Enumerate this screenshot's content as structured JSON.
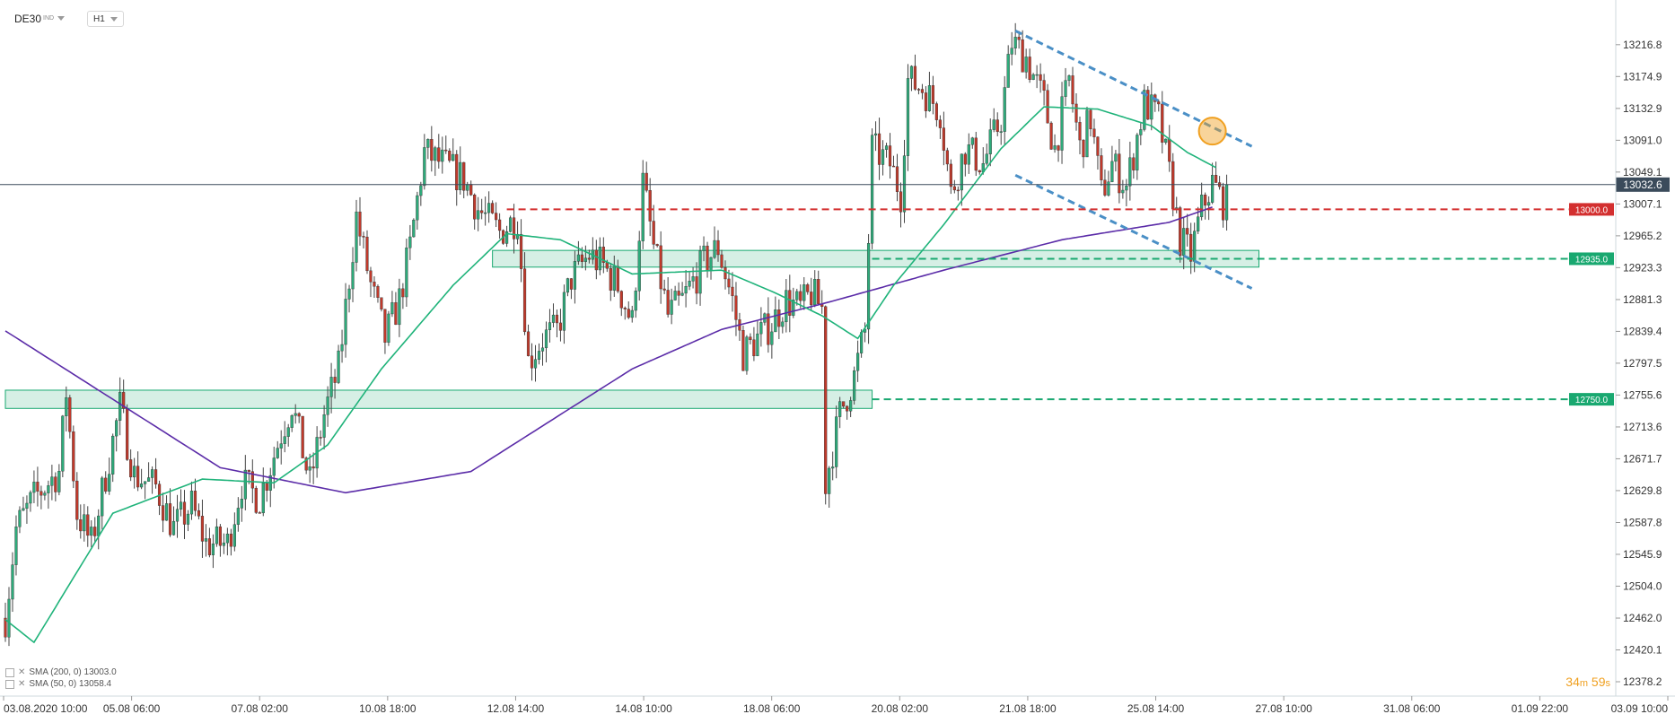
{
  "header": {
    "symbol": "DE30",
    "symbol_badge": "IND",
    "timeframe": "H1"
  },
  "legend": [
    {
      "label": "SMA (200, 0) 13003.0"
    },
    {
      "label": "SMA (50, 0) 13058.4"
    }
  ],
  "countdown": {
    "minutes": "34",
    "m": "m",
    "seconds": "59",
    "s": "s"
  },
  "colors": {
    "bull": "#2eaa7a",
    "bear": "#c0392b",
    "sma50": "#1fb37a",
    "sma200": "#5b2ca8",
    "resistance": "#d32f2f",
    "support": "#19a870",
    "channel": "#4a8fc6",
    "highlight": "#f0a020",
    "price_line": "#3b4b5b"
  },
  "chart_data": {
    "type": "candlestick",
    "ylim": [
      12378.2,
      13252.0
    ],
    "yticks": [
      "13216.8",
      "13174.9",
      "13132.9",
      "13091.0",
      "13049.1",
      "13007.1",
      "12965.2",
      "12923.3",
      "12881.3",
      "12839.4",
      "12797.5",
      "12755.6",
      "12713.6",
      "12671.7",
      "12629.8",
      "12587.8",
      "12545.9",
      "12504.0",
      "12462.0",
      "12420.1",
      "12378.2"
    ],
    "xticks": [
      "03.08.2020 10:00",
      "05.08 06:00",
      "07.08 02:00",
      "10.08 18:00",
      "12.08 14:00",
      "14.08 10:00",
      "18.08 06:00",
      "20.08 02:00",
      "21.08 18:00",
      "25.08 14:00",
      "27.08 10:00",
      "31.08 06:00",
      "01.09 22:00",
      "03.09 10:00"
    ],
    "current_price": {
      "value": 13032.6,
      "label": "13032.6"
    },
    "levels": [
      {
        "value": 13000.0,
        "label": "13000.0",
        "kind": "resistance"
      },
      {
        "value": 12935.0,
        "label": "12935.0",
        "kind": "support"
      },
      {
        "value": 12750.0,
        "label": "12750.0",
        "kind": "support"
      }
    ],
    "zones": [
      {
        "from_bar": 0,
        "to_bar": 242,
        "low": 12738,
        "high": 12762
      },
      {
        "from_bar": 136,
        "to_bar": 350,
        "low": 12924,
        "high": 12946
      }
    ],
    "channel": [
      {
        "from_bar": 282,
        "from_value": 13235,
        "to_bar": 348,
        "to_value": 13083
      },
      {
        "from_bar": 282,
        "from_value": 13045,
        "to_bar": 348,
        "to_value": 12896
      }
    ],
    "highlight": {
      "bar": 337,
      "value": 13103
    },
    "sma_series": [
      {
        "name": "SMA 200",
        "anchors": [
          [
            0,
            12840
          ],
          [
            60,
            12660
          ],
          [
            95,
            12627
          ],
          [
            130,
            12655
          ],
          [
            175,
            12790
          ],
          [
            200,
            12842
          ],
          [
            230,
            12878
          ],
          [
            262,
            12920
          ],
          [
            295,
            12960
          ],
          [
            325,
            12983
          ],
          [
            337,
            13003
          ]
        ]
      },
      {
        "name": "SMA 50",
        "anchors": [
          [
            0,
            12460
          ],
          [
            8,
            12430
          ],
          [
            30,
            12600
          ],
          [
            55,
            12645
          ],
          [
            75,
            12640
          ],
          [
            90,
            12690
          ],
          [
            105,
            12790
          ],
          [
            125,
            12900
          ],
          [
            140,
            12968
          ],
          [
            155,
            12960
          ],
          [
            175,
            12915
          ],
          [
            200,
            12920
          ],
          [
            215,
            12890
          ],
          [
            228,
            12860
          ],
          [
            238,
            12830
          ],
          [
            248,
            12900
          ],
          [
            262,
            12980
          ],
          [
            278,
            13080
          ],
          [
            290,
            13135
          ],
          [
            305,
            13132
          ],
          [
            320,
            13110
          ],
          [
            330,
            13075
          ],
          [
            338,
            13055
          ]
        ]
      }
    ],
    "price_path": [
      [
        0,
        12462
      ],
      [
        3,
        12580
      ],
      [
        8,
        12620
      ],
      [
        15,
        12655
      ],
      [
        17,
        12760
      ],
      [
        20,
        12600
      ],
      [
        24,
        12560
      ],
      [
        32,
        12740
      ],
      [
        36,
        12650
      ],
      [
        42,
        12635
      ],
      [
        47,
        12580
      ],
      [
        52,
        12610
      ],
      [
        56,
        12560
      ],
      [
        62,
        12560
      ],
      [
        66,
        12640
      ],
      [
        71,
        12620
      ],
      [
        77,
        12705
      ],
      [
        80,
        12745
      ],
      [
        85,
        12640
      ],
      [
        89,
        12730
      ],
      [
        93,
        12790
      ],
      [
        98,
        12990
      ],
      [
        102,
        12900
      ],
      [
        106,
        12830
      ],
      [
        110,
        12880
      ],
      [
        113,
        12950
      ],
      [
        117,
        13075
      ],
      [
        122,
        13060
      ],
      [
        128,
        13040
      ],
      [
        132,
        13000
      ],
      [
        138,
        12970
      ],
      [
        143,
        12990
      ],
      [
        146,
        12800
      ],
      [
        150,
        12830
      ],
      [
        154,
        12840
      ],
      [
        158,
        12910
      ],
      [
        163,
        12940
      ],
      [
        167,
        12925
      ],
      [
        171,
        12900
      ],
      [
        175,
        12850
      ],
      [
        178,
        13035
      ],
      [
        181,
        12950
      ],
      [
        185,
        12860
      ],
      [
        189,
        12880
      ],
      [
        195,
        12930
      ],
      [
        199,
        12950
      ],
      [
        203,
        12880
      ],
      [
        206,
        12810
      ],
      [
        210,
        12830
      ],
      [
        214,
        12850
      ],
      [
        218,
        12880
      ],
      [
        222,
        12870
      ],
      [
        225,
        12890
      ],
      [
        228,
        12870
      ],
      [
        229,
        12640
      ],
      [
        233,
        12730
      ],
      [
        237,
        12780
      ],
      [
        240,
        12840
      ],
      [
        242,
        13080
      ],
      [
        247,
        13060
      ],
      [
        250,
        13020
      ],
      [
        252,
        13170
      ],
      [
        256,
        13160
      ],
      [
        261,
        13130
      ],
      [
        264,
        13020
      ],
      [
        268,
        13080
      ],
      [
        273,
        13060
      ],
      [
        278,
        13120
      ],
      [
        281,
        13220
      ],
      [
        285,
        13200
      ],
      [
        290,
        13140
      ],
      [
        293,
        13080
      ],
      [
        297,
        13170
      ],
      [
        300,
        13080
      ],
      [
        303,
        13120
      ],
      [
        306,
        13020
      ],
      [
        309,
        13060
      ],
      [
        313,
        13030
      ],
      [
        318,
        13140
      ],
      [
        322,
        13120
      ],
      [
        326,
        13020
      ],
      [
        328,
        12960
      ],
      [
        331,
        12940
      ],
      [
        334,
        13000
      ],
      [
        337,
        13035
      ],
      [
        340,
        13010
      ],
      [
        341,
        13032.6
      ]
    ],
    "n_bars": 342
  }
}
